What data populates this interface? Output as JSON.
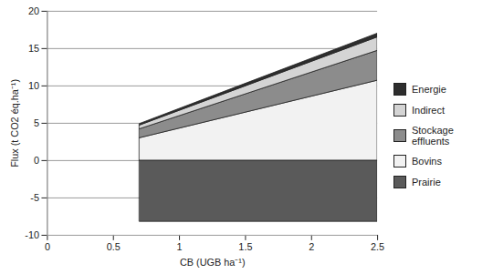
{
  "chart_data": {
    "type": "area",
    "stacked": true,
    "x_label": "CB (UGB ha⁻¹)",
    "y_label": "Flux (t CO2 éq.ha⁻¹)",
    "x": [
      0.7,
      2.5
    ],
    "series": [
      {
        "name": "Prairie",
        "color": "#5a5a5a",
        "values": [
          -8.2,
          -8.2
        ]
      },
      {
        "name": "Bovins",
        "color": "#f2f2f2",
        "values": [
          3.0,
          10.7
        ]
      },
      {
        "name": "Stockage effluents",
        "color": "#8c8c8c",
        "values": [
          1.2,
          4.0
        ]
      },
      {
        "name": "Indirect",
        "color": "#d4d4d4",
        "values": [
          0.5,
          1.8
        ]
      },
      {
        "name": "Energie",
        "color": "#2e2e2e",
        "values": [
          0.2,
          0.5
        ]
      }
    ],
    "xlim": [
      0,
      2.5
    ],
    "xticks": [
      0,
      0.5,
      1,
      1.5,
      2,
      2.5
    ],
    "ylim": [
      -10,
      20
    ],
    "yticks": [
      -10,
      -5,
      0,
      5,
      10,
      15,
      20
    ],
    "grid": true,
    "legend": "right"
  }
}
